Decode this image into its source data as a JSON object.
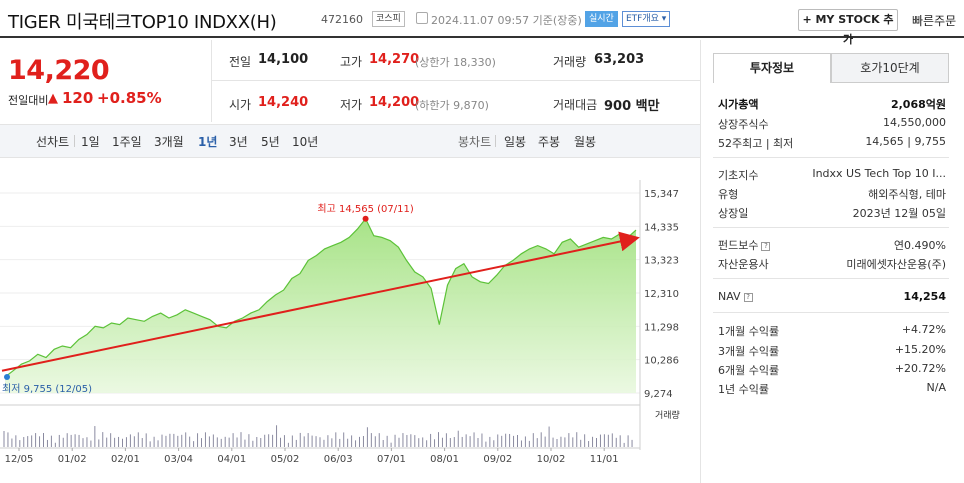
{
  "header": {
    "title": "TIGER 미국테크TOP10 INDXX(H)",
    "code": "472160",
    "market_tag": "코스피",
    "datetime": "2024.11.07 09:57  기준(장중)",
    "live_tag": "실시간",
    "etf_tag": "ETF개요 ▾",
    "mystock_button": "+ MY STOCK 추가",
    "quick_order": "빠른주문"
  },
  "price": {
    "current": "14,220",
    "change_label": "전일대비",
    "change_arrow": "▲",
    "change_value": "120",
    "change_pct": "+0.85%"
  },
  "quote": {
    "prev_close_label": "전일",
    "prev_close": "14,100",
    "high_label": "고가",
    "high": "14,270",
    "upper_limit": "(상한가 18,330)",
    "volume_label": "거래량",
    "volume": "63,203",
    "open_label": "시가",
    "open": "14,240",
    "low_label": "저가",
    "low": "14,200",
    "lower_limit": "(하한가 9,870)",
    "trade_value_label": "거래대금",
    "trade_value": "900 백만"
  },
  "periods": {
    "line_label": "선차트",
    "items": [
      "1일",
      "1주일",
      "3개월",
      "1년",
      "3년",
      "5년",
      "10년"
    ],
    "active": "1년",
    "candle_label": "봉차트",
    "candle_items": [
      "일봉",
      "주봉",
      "월봉"
    ]
  },
  "chart_data": {
    "type": "area",
    "title": "",
    "y_ticks": [
      "15,347",
      "14,335",
      "13,323",
      "12,310",
      "11,298",
      "10,286",
      "9,274"
    ],
    "ylim": [
      9274,
      15347
    ],
    "x_ticks": [
      "12/05",
      "01/02",
      "02/01",
      "03/04",
      "04/01",
      "05/02",
      "06/03",
      "07/01",
      "08/01",
      "09/02",
      "10/02",
      "11/01"
    ],
    "high_label": "최고 14,565 (07/11)",
    "low_label": "최저 9,755 (12/05)",
    "volume_label": "거래량",
    "series": [
      {
        "values": [
          9760,
          9950,
          10150,
          10250,
          10450,
          10350,
          10600,
          10700,
          10650,
          10900,
          11050,
          11300,
          11250,
          11400,
          11350,
          11550,
          11500,
          11450,
          11600,
          11700,
          11550,
          11650,
          11800,
          11700,
          11600,
          11500,
          11300,
          11250,
          11450,
          11550,
          11700,
          11800,
          12050,
          12250,
          12400,
          12750,
          12900,
          13300,
          13450,
          13650,
          13750,
          13850,
          14000,
          14250,
          14565,
          14050,
          14000,
          13900,
          13700,
          13300,
          12950,
          12800,
          12450,
          11350,
          12550,
          13050,
          13200,
          12800,
          12650,
          12600,
          12850,
          13150,
          13300,
          13500,
          13650,
          13750,
          13650,
          13500,
          13850,
          13950,
          13700,
          13800,
          13900,
          14000,
          13950,
          14100,
          14000,
          14220
        ]
      }
    ],
    "trend_line": {
      "start": 9950,
      "end": 13950
    }
  },
  "info_panel": {
    "tab_active": "투자정보",
    "tab_other": "호가10단계",
    "rows": [
      {
        "label": "시가총액",
        "value": "2,068억원"
      },
      {
        "label": "상장주식수",
        "value": "14,550,000"
      },
      {
        "label": "52주최고 | 최저",
        "value": "14,565 | 9,755"
      },
      {
        "label": "기초지수",
        "value": "Indxx US Tech Top 10 I..."
      },
      {
        "label": "유형",
        "value": "해외주식형, 테마"
      },
      {
        "label": "상장일",
        "value": "2023년 12월 05일"
      },
      {
        "label": "펀드보수",
        "value": "연0.490%"
      },
      {
        "label": "자산운용사",
        "value": "미래에셋자산운용(주)"
      },
      {
        "label": "NAV",
        "value": "14,254"
      },
      {
        "label": "1개월 수익률",
        "value": "+4.72%"
      },
      {
        "label": "3개월 수익률",
        "value": "+15.20%"
      },
      {
        "label": "6개월 수익률",
        "value": "+20.72%"
      },
      {
        "label": "1년 수익률",
        "value": "N/A"
      }
    ]
  }
}
